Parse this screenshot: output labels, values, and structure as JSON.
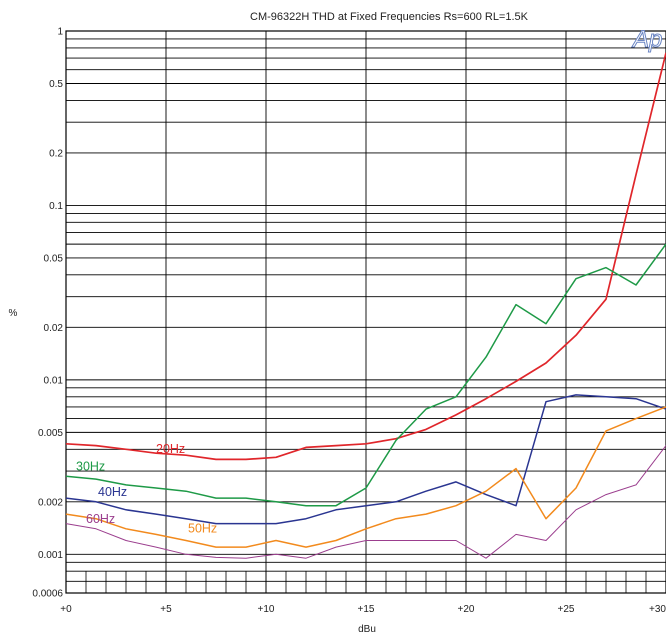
{
  "chart_data": {
    "type": "line",
    "title": "CM-96322H  THD at Fixed Frequencies  Rs=600  RL=1.5K",
    "xlabel": "dBu",
    "ylabel": "%",
    "xlim": [
      0,
      30
    ],
    "ylim": [
      0.0006,
      1
    ],
    "y_scale": "log",
    "grid": true,
    "logo_text": "Ap",
    "x_ticks": [
      {
        "value": 0,
        "label": "+0"
      },
      {
        "value": 5,
        "label": "+5"
      },
      {
        "value": 10,
        "label": "+10"
      },
      {
        "value": 15,
        "label": "+15"
      },
      {
        "value": 20,
        "label": "+20"
      },
      {
        "value": 25,
        "label": "+25"
      },
      {
        "value": 30,
        "label": "+30"
      }
    ],
    "y_ticks": [
      {
        "value": 1,
        "label": "1"
      },
      {
        "value": 0.5,
        "label": "0.5"
      },
      {
        "value": 0.2,
        "label": "0.2"
      },
      {
        "value": 0.1,
        "label": "0.1"
      },
      {
        "value": 0.05,
        "label": "0.05"
      },
      {
        "value": 0.02,
        "label": "0.02"
      },
      {
        "value": 0.01,
        "label": "0.01"
      },
      {
        "value": 0.005,
        "label": "0.005"
      },
      {
        "value": 0.002,
        "label": "0.002"
      },
      {
        "value": 0.001,
        "label": "0.001"
      },
      {
        "value": 0.0006,
        "label": "0.0006"
      }
    ],
    "series": [
      {
        "name": "20Hz",
        "color": "#e0262b",
        "x": [
          0,
          1.5,
          3,
          4.5,
          6,
          7.5,
          9,
          10.5,
          12,
          13.5,
          15,
          16.5,
          18,
          19.5,
          21,
          22.5,
          24,
          25.5,
          27,
          28.5,
          30
        ],
        "y": [
          0.0043,
          0.0042,
          0.004,
          0.0038,
          0.0037,
          0.0035,
          0.0035,
          0.0036,
          0.0041,
          0.0042,
          0.0043,
          0.0046,
          0.0052,
          0.0063,
          0.0078,
          0.0098,
          0.0125,
          0.018,
          0.029,
          0.15,
          0.75
        ]
      },
      {
        "name": "30Hz",
        "color": "#1e9a47",
        "x": [
          0,
          1.5,
          3,
          4.5,
          6,
          7.5,
          9,
          10.5,
          12,
          13.5,
          15,
          16.5,
          18,
          19.5,
          21,
          22.5,
          24,
          25.5,
          27,
          28.5,
          30
        ],
        "y": [
          0.0028,
          0.0027,
          0.0025,
          0.0024,
          0.0023,
          0.0021,
          0.0021,
          0.002,
          0.0019,
          0.0019,
          0.0024,
          0.0045,
          0.0068,
          0.008,
          0.0135,
          0.027,
          0.021,
          0.038,
          0.044,
          0.035,
          0.06
        ]
      },
      {
        "name": "40Hz",
        "color": "#2a3591",
        "x": [
          0,
          1.5,
          3,
          4.5,
          6,
          7.5,
          9,
          10.5,
          12,
          13.5,
          15,
          16.5,
          18,
          19.5,
          21,
          22.5,
          24,
          25.5,
          27,
          28.5,
          30
        ],
        "y": [
          0.0021,
          0.002,
          0.0018,
          0.0017,
          0.0016,
          0.0015,
          0.0015,
          0.0015,
          0.0016,
          0.0018,
          0.0019,
          0.002,
          0.0023,
          0.0026,
          0.0022,
          0.0019,
          0.0075,
          0.0082,
          0.008,
          0.0078,
          0.0068
        ]
      },
      {
        "name": "50Hz",
        "color": "#f28a1d",
        "x": [
          0,
          1.5,
          3,
          4.5,
          6,
          7.5,
          9,
          10.5,
          12,
          13.5,
          15,
          16.5,
          18,
          19.5,
          21,
          22.5,
          24,
          25.5,
          27,
          28.5,
          30
        ],
        "y": [
          0.0017,
          0.0016,
          0.0014,
          0.0013,
          0.0012,
          0.0011,
          0.0011,
          0.0012,
          0.0011,
          0.0012,
          0.0014,
          0.0016,
          0.0017,
          0.0019,
          0.0023,
          0.0031,
          0.0016,
          0.0024,
          0.0051,
          0.006,
          0.007
        ]
      },
      {
        "name": "60Hz",
        "color": "#9b3e8e",
        "x": [
          0,
          1.5,
          3,
          4.5,
          6,
          7.5,
          9,
          10.5,
          12,
          13.5,
          15,
          16.5,
          18,
          19.5,
          21,
          22.5,
          24,
          25.5,
          27,
          28.5,
          30
        ],
        "y": [
          0.0015,
          0.0014,
          0.0012,
          0.0011,
          0.001,
          0.00096,
          0.00095,
          0.001,
          0.00095,
          0.0011,
          0.0012,
          0.0012,
          0.0012,
          0.0012,
          0.00095,
          0.0013,
          0.0012,
          0.0018,
          0.0022,
          0.0025,
          0.0042
        ]
      }
    ]
  }
}
